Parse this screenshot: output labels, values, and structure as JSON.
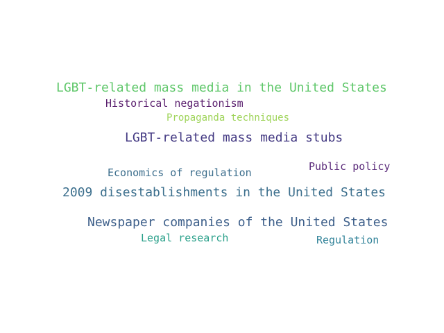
{
  "words": [
    {
      "text": "LGBT-related mass media in the United States",
      "color": "#5fc76a"
    },
    {
      "text": "Historical negationism",
      "color": "#5a1f6e"
    },
    {
      "text": "Propaganda techniques",
      "color": "#9fd45a"
    },
    {
      "text": "LGBT-related mass media stubs",
      "color": "#443a83"
    },
    {
      "text": "Public policy",
      "color": "#5a2a7a"
    },
    {
      "text": "Economics of regulation",
      "color": "#3b6d8c"
    },
    {
      "text": "2009 disestablishments in the United States",
      "color": "#3c6f8d"
    },
    {
      "text": "Newspaper companies of the United States",
      "color": "#3d5f8a"
    },
    {
      "text": "Legal research",
      "color": "#2aa08a"
    },
    {
      "text": "Regulation",
      "color": "#33849a"
    }
  ]
}
